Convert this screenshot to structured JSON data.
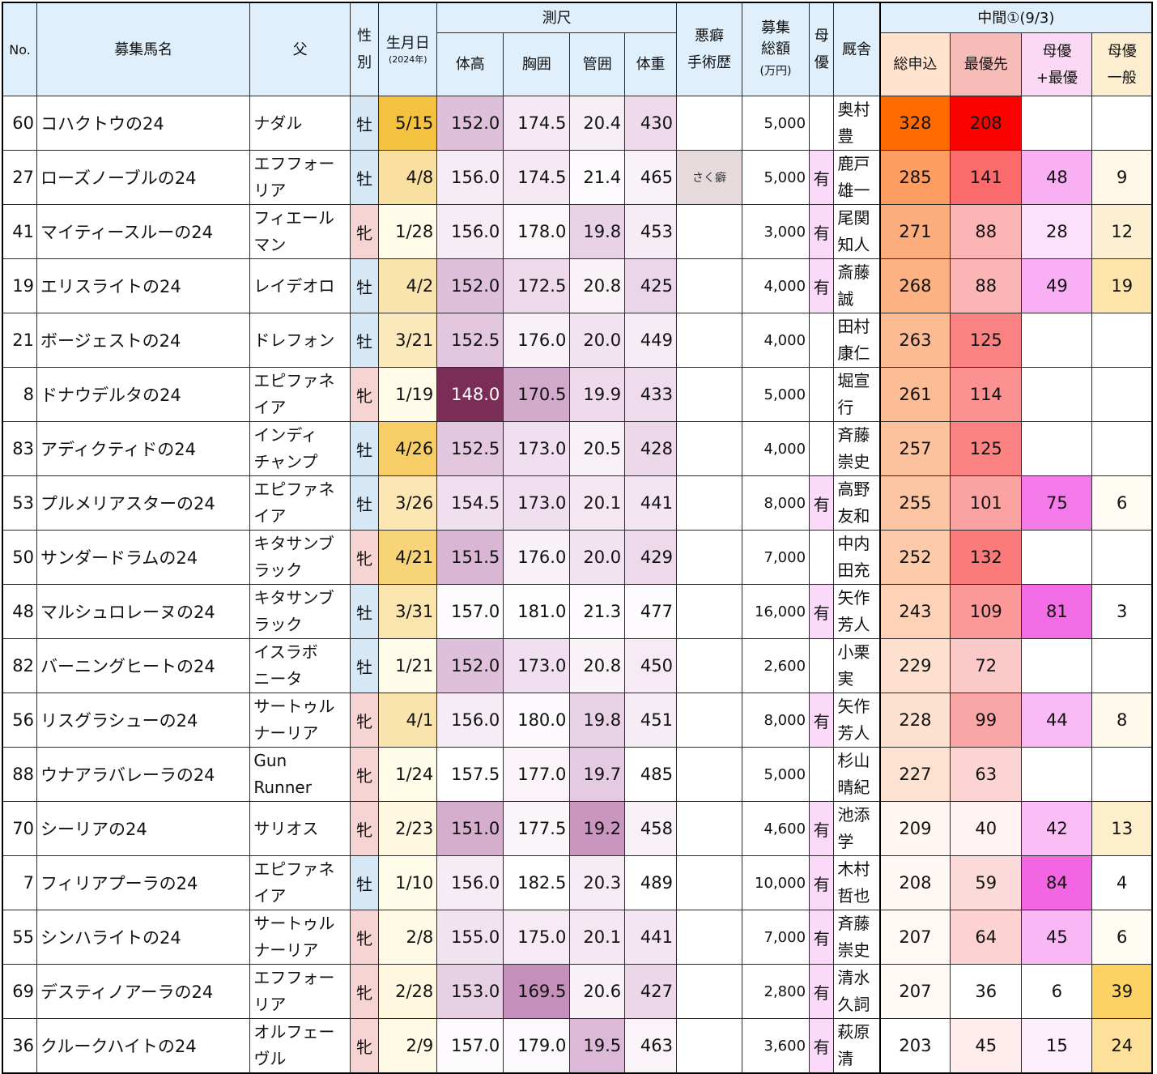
{
  "header": {
    "no": "No.",
    "name": "募集馬名",
    "sire": "父",
    "sex_top": "性",
    "sex_bottom": "別",
    "birth_top": "生月日",
    "birth_bottom": "(2024年)",
    "measure": "測尺",
    "height": "体高",
    "girth": "胸囲",
    "cannon": "管囲",
    "weight": "体重",
    "vice_top": "悪癖",
    "vice_bottom": "手術歴",
    "fund_top": "募集",
    "fund_mid": "総額",
    "fund_bottom": "(万円)",
    "dam_top": "母",
    "dam_bottom": "優",
    "stable": "厩舎",
    "interim": "中間①(9/3)",
    "total": "総申込",
    "top": "最優先",
    "mtop_top": "母優",
    "mtop_bottom": "+最優",
    "mgen_top": "母優",
    "mgen_bottom": "一般"
  },
  "colors": {
    "header_bg": "#dff0fc",
    "colt_bg": "#d6e7f6",
    "filly_bg": "#f6d4d4",
    "dam_pref_bg": "#fbd9f8"
  },
  "rows": [
    {
      "no": "60",
      "name": "コハクトウの24",
      "sire1": "ナダル",
      "sire2": "",
      "sex": "牡",
      "date": "5/15",
      "height": "152.0",
      "girth": "174.5",
      "cannon": "20.4",
      "weight": "430",
      "vice": "",
      "fund": "5,000",
      "dam": "",
      "stable1": "奥村",
      "stable2": "豊",
      "total": "328",
      "top": "208",
      "mtop": "",
      "mgen": "",
      "bg": {
        "date": "#f3c23e",
        "height": "#dfc0db",
        "girth": "#f5e9f4",
        "cannon": "#f7eff6",
        "weight": "#eedaeb",
        "total": "#fd6a00",
        "top": "#fa0200",
        "mtop": "#ffffff",
        "mgen": "#ffffff"
      }
    },
    {
      "no": "27",
      "name": "ローズノーブルの24",
      "sire1": "エフフォー",
      "sire2": "リア",
      "sex": "牡",
      "date": "4/8",
      "height": "156.0",
      "girth": "174.5",
      "cannon": "21.4",
      "weight": "465",
      "vice": "さく癖",
      "fund": "5,000",
      "dam": "有",
      "stable1": "鹿戸",
      "stable2": "雄一",
      "total": "285",
      "top": "141",
      "mtop": "48",
      "mgen": "9",
      "bg": {
        "date": "#fae0a0",
        "height": "#f6ecf5",
        "girth": "#f5e9f4",
        "cannon": "#fdfbfd",
        "weight": "#f9f2f8",
        "vice": "#e6dadc",
        "total": "#fd9d62",
        "top": "#fb6b6b",
        "mtop": "#f9b0f3",
        "mgen": "#fff8e8"
      }
    },
    {
      "no": "41",
      "name": "マイティースルーの24",
      "sire1": "フィエール",
      "sire2": "マン",
      "sex": "牝",
      "date": "1/28",
      "height": "156.0",
      "girth": "178.0",
      "cannon": "19.8",
      "weight": "453",
      "vice": "",
      "fund": "3,000",
      "dam": "有",
      "stable1": "尾関",
      "stable2": "知人",
      "total": "271",
      "top": "88",
      "mtop": "28",
      "mgen": "12",
      "bg": {
        "date": "#fffbe9",
        "height": "#f6ecf5",
        "girth": "#fbf6fa",
        "cannon": "#e9d2e6",
        "weight": "#f6ecf5",
        "total": "#fcad7b",
        "top": "#fbb5b5",
        "mtop": "#fde0fb",
        "mgen": "#fdf0d2"
      }
    },
    {
      "no": "19",
      "name": "エリスライトの24",
      "sire1": "レイデオロ",
      "sire2": "",
      "sex": "牡",
      "date": "4/2",
      "height": "152.0",
      "girth": "172.5",
      "cannon": "20.8",
      "weight": "425",
      "vice": "",
      "fund": "4,000",
      "dam": "有",
      "stable1": "斎藤",
      "stable2": "誠",
      "total": "268",
      "top": "88",
      "mtop": "49",
      "mgen": "19",
      "bg": {
        "date": "#fae4ad",
        "height": "#dfc0db",
        "girth": "#eedaeb",
        "cannon": "#f9f3f8",
        "weight": "#ebd5e8",
        "total": "#fcb182",
        "top": "#fbb5b5",
        "mtop": "#f9aff3",
        "mgen": "#fde4aa"
      }
    },
    {
      "no": "21",
      "name": "ボージェストの24",
      "sire1": "ドレフォン",
      "sire2": "",
      "sex": "牡",
      "date": "3/21",
      "height": "152.5",
      "girth": "176.0",
      "cannon": "20.0",
      "weight": "449",
      "vice": "",
      "fund": "4,000",
      "dam": "",
      "stable1": "田村",
      "stable2": "康仁",
      "total": "263",
      "top": "125",
      "mtop": "",
      "mgen": "",
      "bg": {
        "date": "#fbe8bb",
        "height": "#e3c7df",
        "girth": "#f8f1f7",
        "cannon": "#f2e3f0",
        "weight": "#f6ecf5",
        "total": "#fcbb92",
        "top": "#fb8282",
        "mtop": "#ffffff",
        "mgen": "#ffffff"
      }
    },
    {
      "no": "8",
      "name": "ドナウデルタの24",
      "sire1": "エピファネ",
      "sire2": "イア",
      "sex": "牝",
      "date": "1/19",
      "height": "148.0",
      "girth": "170.5",
      "cannon": "19.9",
      "weight": "433",
      "vice": "",
      "fund": "5,000",
      "dam": "",
      "stable1": "堀宣",
      "stable2": "行",
      "total": "261",
      "top": "114",
      "mtop": "",
      "mgen": "",
      "bg": {
        "date": "#fffbe9",
        "height": "#7a2d55",
        "girth": "#d2aacb",
        "cannon": "#eedaeb",
        "weight": "#eedbeb",
        "total": "#fcbd96",
        "top": "#fb9191",
        "mtop": "#ffffff",
        "mgen": "#ffffff"
      }
    },
    {
      "no": "83",
      "name": "アディクティドの24",
      "sire1": "インディ",
      "sire2": "チャンプ",
      "sex": "牡",
      "date": "4/26",
      "height": "152.5",
      "girth": "173.0",
      "cannon": "20.5",
      "weight": "428",
      "vice": "",
      "fund": "4,000",
      "dam": "",
      "stable1": "斉藤",
      "stable2": "崇史",
      "total": "257",
      "top": "125",
      "mtop": "",
      "mgen": "",
      "bg": {
        "date": "#f7ce65",
        "height": "#e3c7df",
        "girth": "#f0dfee",
        "cannon": "#f8f0f7",
        "weight": "#edd8ea",
        "total": "#fcc29e",
        "top": "#fb8282",
        "mtop": "#ffffff",
        "mgen": "#ffffff"
      }
    },
    {
      "no": "53",
      "name": "プルメリアスターの24",
      "sire1": "エピファネ",
      "sire2": "イア",
      "sex": "牡",
      "date": "3/26",
      "height": "154.5",
      "girth": "173.0",
      "cannon": "20.1",
      "weight": "441",
      "vice": "",
      "fund": "8,000",
      "dam": "有",
      "stable1": "高野",
      "stable2": "友和",
      "total": "255",
      "top": "101",
      "mtop": "75",
      "mgen": "6",
      "bg": {
        "date": "#fbe6b4",
        "height": "#f0dfee",
        "girth": "#f0dfee",
        "cannon": "#f4e7f2",
        "weight": "#f3e5f1",
        "total": "#fcc5a3",
        "top": "#fba3a3",
        "mtop": "#f57bea",
        "mgen": "#fffcf4"
      }
    },
    {
      "no": "50",
      "name": "サンダードラムの24",
      "sire1": "キタサンブ",
      "sire2": "ラック",
      "sex": "牝",
      "date": "4/21",
      "height": "151.5",
      "girth": "176.0",
      "cannon": "20.0",
      "weight": "429",
      "vice": "",
      "fund": "7,000",
      "dam": "",
      "stable1": "中内",
      "stable2": "田充",
      "total": "252",
      "top": "132",
      "mtop": "",
      "mgen": "",
      "bg": {
        "date": "#f8d478",
        "height": "#d9b6d3",
        "girth": "#f8f1f7",
        "cannon": "#f2e3f0",
        "weight": "#eed9eb",
        "total": "#fcc9a9",
        "top": "#fb7a7a",
        "mtop": "#ffffff",
        "mgen": "#ffffff"
      }
    },
    {
      "no": "48",
      "name": "マルシュロレーヌの24",
      "sire1": "キタサンブ",
      "sire2": "ラック",
      "sex": "牡",
      "date": "3/31",
      "height": "157.0",
      "girth": "181.0",
      "cannon": "21.3",
      "weight": "477",
      "vice": "",
      "fund": "16,000",
      "dam": "有",
      "stable1": "矢作",
      "stable2": "芳人",
      "total": "243",
      "top": "109",
      "mtop": "81",
      "mgen": "3",
      "bg": {
        "date": "#fae5af",
        "height": "#fdfbfd",
        "girth": "#fefefe",
        "cannon": "#fdfbfd",
        "weight": "#fdfbfd",
        "total": "#fdd2b8",
        "top": "#fb9898",
        "mtop": "#f36de6",
        "mgen": "#ffffff"
      }
    },
    {
      "no": "82",
      "name": "バーニングヒートの24",
      "sire1": "イスラボ",
      "sire2": "ニータ",
      "sex": "牡",
      "date": "1/21",
      "height": "152.0",
      "girth": "173.0",
      "cannon": "20.8",
      "weight": "450",
      "vice": "",
      "fund": "2,600",
      "dam": "",
      "stable1": "小栗",
      "stable2": "実",
      "total": "229",
      "top": "72",
      "mtop": "",
      "mgen": "",
      "bg": {
        "date": "#fffbe9",
        "height": "#dfc0db",
        "girth": "#f0dfee",
        "cannon": "#f9f3f8",
        "weight": "#f6ebf5",
        "total": "#fde0ce",
        "top": "#fcc9c9",
        "mtop": "#ffffff",
        "mgen": "#ffffff"
      }
    },
    {
      "no": "56",
      "name": "リスグラシューの24",
      "sire1": "サートゥル",
      "sire2": "ナーリア",
      "sex": "牝",
      "date": "4/1",
      "height": "156.0",
      "girth": "180.0",
      "cannon": "19.8",
      "weight": "451",
      "vice": "",
      "fund": "8,000",
      "dam": "有",
      "stable1": "矢作",
      "stable2": "芳人",
      "total": "228",
      "top": "99",
      "mtop": "44",
      "mgen": "8",
      "bg": {
        "date": "#fae4ad",
        "height": "#f6ecf5",
        "girth": "#fdfafd",
        "cannon": "#e9d2e6",
        "weight": "#f6ecf5",
        "total": "#fde1d0",
        "top": "#fba6a6",
        "mtop": "#fabaf5",
        "mgen": "#fff9ec"
      }
    },
    {
      "no": "88",
      "name": "ウナアラバレーラの24",
      "sire1": "Gun",
      "sire2": "Runner",
      "sex": "牝",
      "date": "1/24",
      "height": "157.5",
      "girth": "177.0",
      "cannon": "19.7",
      "weight": "485",
      "vice": "",
      "fund": "5,000",
      "dam": "",
      "stable1": "杉山",
      "stable2": "晴紀",
      "total": "227",
      "top": "63",
      "mtop": "",
      "mgen": "",
      "bg": {
        "date": "#fffbe9",
        "height": "#ffffff",
        "girth": "#faf4f9",
        "cannon": "#e5cbe1",
        "weight": "#ffffff",
        "total": "#fde2d2",
        "top": "#fcd4d4",
        "mtop": "#ffffff",
        "mgen": "#ffffff"
      }
    },
    {
      "no": "70",
      "name": "シーリアの24",
      "sire1": "サリオス",
      "sire2": "",
      "sex": "牝",
      "date": "2/23",
      "height": "151.0",
      "girth": "177.5",
      "cannon": "19.2",
      "weight": "458",
      "vice": "",
      "fund": "4,600",
      "dam": "有",
      "stable1": "池添",
      "stable2": "学",
      "total": "209",
      "top": "40",
      "mtop": "42",
      "mgen": "13",
      "bg": {
        "date": "#fff8e0",
        "height": "#d5aecd",
        "girth": "#faf5f9",
        "cannon": "#c896bf",
        "weight": "#f8f0f7",
        "total": "#fff6f1",
        "top": "#fff3f3",
        "mtop": "#fabdf6",
        "mgen": "#fdefcc"
      }
    },
    {
      "no": "7",
      "name": "フィリアプーラの24",
      "sire1": "エピファネ",
      "sire2": "イア",
      "sex": "牡",
      "date": "1/10",
      "height": "156.0",
      "girth": "182.5",
      "cannon": "20.3",
      "weight": "489",
      "vice": "",
      "fund": "10,000",
      "dam": "有",
      "stable1": "木村",
      "stable2": "哲也",
      "total": "208",
      "top": "59",
      "mtop": "84",
      "mgen": "4",
      "bg": {
        "date": "#fffbe9",
        "height": "#f6ecf5",
        "girth": "#ffffff",
        "cannon": "#f6ecf5",
        "weight": "#ffffff",
        "total": "#fff7f3",
        "top": "#fcdada",
        "mtop": "#f266e4",
        "mgen": "#ffffff"
      }
    },
    {
      "no": "55",
      "name": "シンハライトの24",
      "sire1": "サートゥル",
      "sire2": "ナーリア",
      "sex": "牝",
      "date": "2/8",
      "height": "155.0",
      "girth": "175.0",
      "cannon": "20.1",
      "weight": "441",
      "vice": "",
      "fund": "7,000",
      "dam": "有",
      "stable1": "斉藤",
      "stable2": "崇史",
      "total": "207",
      "top": "64",
      "mtop": "45",
      "mgen": "6",
      "bg": {
        "date": "#fffae6",
        "height": "#f2e3f0",
        "girth": "#f6ebf5",
        "cannon": "#f4e7f2",
        "weight": "#f3e5f1",
        "total": "#fff8f4",
        "top": "#fcd2d2",
        "mtop": "#fab7f5",
        "mgen": "#fffcf4"
      }
    },
    {
      "no": "69",
      "name": "デスティノアーラの24",
      "sire1": "エフフォー",
      "sire2": "リア",
      "sex": "牝",
      "date": "2/28",
      "height": "153.0",
      "girth": "169.5",
      "cannon": "20.6",
      "weight": "427",
      "vice": "",
      "fund": "2,800",
      "dam": "有",
      "stable1": "清水",
      "stable2": "久詞",
      "total": "207",
      "top": "36",
      "mtop": "6",
      "mgen": "39",
      "bg": {
        "date": "#fff8df",
        "height": "#e7cfe4",
        "girth": "#c58fbb",
        "cannon": "#f8f1f7",
        "weight": "#ecd7e9",
        "total": "#fff8f4",
        "top": "#ffffff",
        "mtop": "#ffffff",
        "mgen": "#fdd264"
      }
    },
    {
      "no": "36",
      "name": "クルークハイトの24",
      "sire1": "オルフェー",
      "sire2": "ヴル",
      "sex": "牝",
      "date": "2/9",
      "height": "157.0",
      "girth": "179.0",
      "cannon": "19.5",
      "weight": "463",
      "vice": "",
      "fund": "3,600",
      "dam": "有",
      "stable1": "萩原",
      "stable2": "清",
      "total": "203",
      "top": "45",
      "mtop": "15",
      "mgen": "24",
      "bg": {
        "date": "#fffae6",
        "height": "#fdfbfd",
        "girth": "#fcf9fc",
        "cannon": "#dcbad7",
        "weight": "#faf4f9",
        "total": "#ffffff",
        "top": "#ffeded",
        "mtop": "#fdf0fc",
        "mgen": "#fde09a"
      }
    }
  ]
}
